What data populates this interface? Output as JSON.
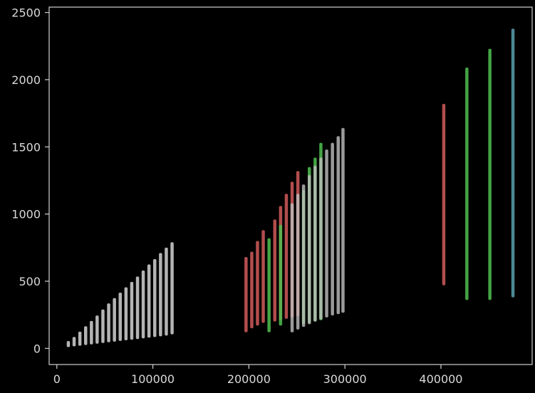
{
  "chart_data": {
    "type": "scatter",
    "title": "",
    "xlabel": "",
    "ylabel": "",
    "xlim": [
      -8000,
      495000
    ],
    "ylim": [
      -120,
      2540
    ],
    "xticks": [
      0,
      100000,
      200000,
      300000,
      400000
    ],
    "xtick_labels": [
      "0",
      "100000",
      "200000",
      "300000",
      "400000"
    ],
    "yticks": [
      0,
      500,
      1000,
      1500,
      2000,
      2500
    ],
    "ytick_labels": [
      "0",
      "500",
      "1000",
      "1500",
      "2000",
      "2500"
    ],
    "grid": false,
    "background": "#000000",
    "series": [
      {
        "color": "#c8c8c8",
        "opacity": 0.9,
        "columns": [
          {
            "x": 12000,
            "ymin": 10,
            "ymax": 55
          },
          {
            "x": 18000,
            "ymin": 15,
            "ymax": 85
          },
          {
            "x": 24000,
            "ymin": 20,
            "ymax": 125
          },
          {
            "x": 30000,
            "ymin": 25,
            "ymax": 165
          },
          {
            "x": 36000,
            "ymin": 30,
            "ymax": 205
          },
          {
            "x": 42000,
            "ymin": 35,
            "ymax": 245
          },
          {
            "x": 48000,
            "ymin": 40,
            "ymax": 290
          },
          {
            "x": 54000,
            "ymin": 45,
            "ymax": 335
          },
          {
            "x": 60000,
            "ymin": 50,
            "ymax": 375
          },
          {
            "x": 66000,
            "ymin": 55,
            "ymax": 415
          },
          {
            "x": 72000,
            "ymin": 60,
            "ymax": 455
          },
          {
            "x": 78000,
            "ymin": 65,
            "ymax": 495
          },
          {
            "x": 84000,
            "ymin": 70,
            "ymax": 535
          },
          {
            "x": 90000,
            "ymin": 75,
            "ymax": 580
          },
          {
            "x": 96000,
            "ymin": 80,
            "ymax": 625
          },
          {
            "x": 102000,
            "ymin": 85,
            "ymax": 665
          },
          {
            "x": 108000,
            "ymin": 90,
            "ymax": 710
          },
          {
            "x": 114000,
            "ymin": 95,
            "ymax": 750
          },
          {
            "x": 120000,
            "ymin": 105,
            "ymax": 790
          }
        ]
      },
      {
        "color": "#e06060",
        "opacity": 0.8,
        "columns": [
          {
            "x": 197000,
            "ymin": 120,
            "ymax": 680
          },
          {
            "x": 203000,
            "ymin": 150,
            "ymax": 720
          },
          {
            "x": 209000,
            "ymin": 170,
            "ymax": 800
          },
          {
            "x": 215000,
            "ymin": 190,
            "ymax": 880
          },
          {
            "x": 227000,
            "ymin": 200,
            "ymax": 960
          },
          {
            "x": 233000,
            "ymin": 210,
            "ymax": 1060
          },
          {
            "x": 239000,
            "ymin": 220,
            "ymax": 1150
          },
          {
            "x": 245000,
            "ymin": 230,
            "ymax": 1240
          },
          {
            "x": 251000,
            "ymin": 240,
            "ymax": 1320
          },
          {
            "x": 403000,
            "ymin": 470,
            "ymax": 1820
          }
        ]
      },
      {
        "color": "#50c050",
        "opacity": 0.85,
        "columns": [
          {
            "x": 221000,
            "ymin": 120,
            "ymax": 820
          },
          {
            "x": 233000,
            "ymin": 170,
            "ymax": 920
          },
          {
            "x": 257000,
            "ymin": 180,
            "ymax": 1180
          },
          {
            "x": 263000,
            "ymin": 190,
            "ymax": 1350
          },
          {
            "x": 269000,
            "ymin": 200,
            "ymax": 1420
          },
          {
            "x": 275000,
            "ymin": 210,
            "ymax": 1530
          },
          {
            "x": 427000,
            "ymin": 360,
            "ymax": 2090
          },
          {
            "x": 451000,
            "ymin": 360,
            "ymax": 2230
          }
        ]
      },
      {
        "color": "#c0c0c0",
        "opacity": 0.8,
        "columns": [
          {
            "x": 245000,
            "ymin": 120,
            "ymax": 1080
          },
          {
            "x": 251000,
            "ymin": 140,
            "ymax": 1150
          },
          {
            "x": 257000,
            "ymin": 160,
            "ymax": 1220
          },
          {
            "x": 263000,
            "ymin": 180,
            "ymax": 1290
          },
          {
            "x": 269000,
            "ymin": 200,
            "ymax": 1360
          },
          {
            "x": 275000,
            "ymin": 215,
            "ymax": 1420
          },
          {
            "x": 281000,
            "ymin": 230,
            "ymax": 1480
          },
          {
            "x": 287000,
            "ymin": 245,
            "ymax": 1530
          },
          {
            "x": 293000,
            "ymin": 255,
            "ymax": 1580
          },
          {
            "x": 298000,
            "ymin": 265,
            "ymax": 1640
          }
        ]
      },
      {
        "color": "#5aa0b0",
        "opacity": 0.85,
        "columns": [
          {
            "x": 475000,
            "ymin": 380,
            "ymax": 2380
          }
        ]
      }
    ]
  }
}
